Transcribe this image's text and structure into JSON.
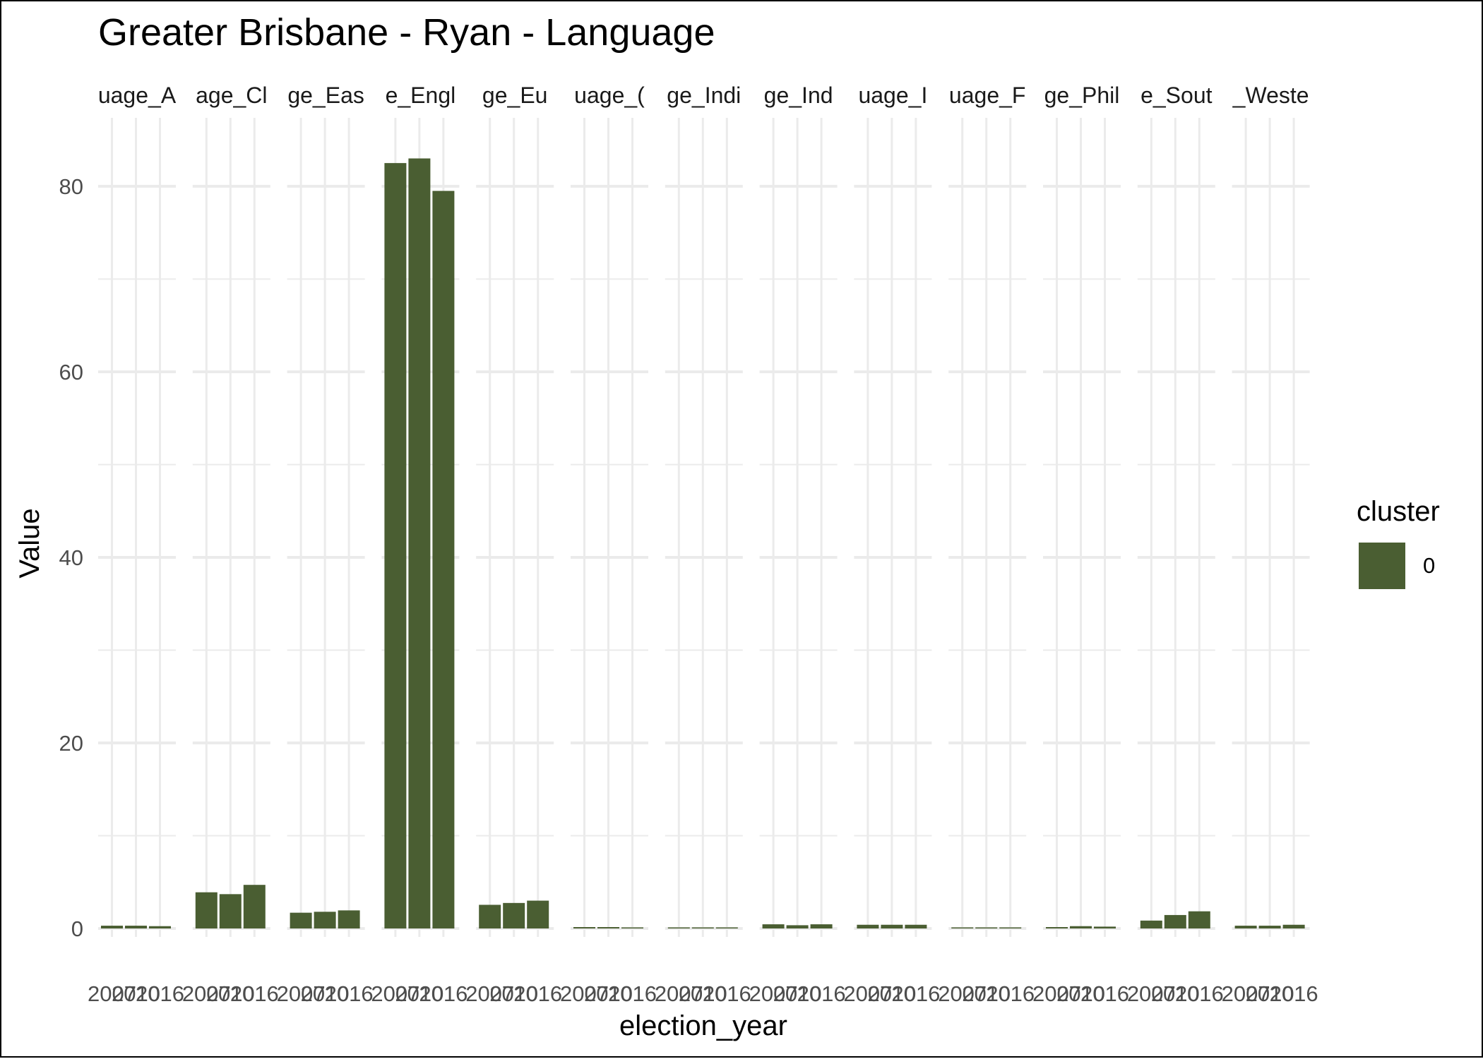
{
  "chart_data": {
    "type": "bar",
    "title": "Greater Brisbane - Ryan - Language",
    "xlabel": "election_year",
    "ylabel": "Value",
    "ylim": [
      0,
      87
    ],
    "yticks": [
      0,
      20,
      40,
      60,
      80
    ],
    "grid": true,
    "legend": {
      "title": "cluster",
      "position": "right",
      "entries": [
        {
          "label": "0",
          "color": "#4a5e32"
        }
      ]
    },
    "bar_color": "#4a5e32",
    "facet_label_color": "#1a1a1a",
    "years": [
      "2007",
      "2010",
      "2016"
    ],
    "facets": [
      {
        "label": "uage_A",
        "values": [
          0.3,
          0.3,
          0.25
        ]
      },
      {
        "label": "age_Cl",
        "values": [
          3.9,
          3.7,
          4.7
        ]
      },
      {
        "label": "ge_Eas",
        "values": [
          1.7,
          1.8,
          1.95
        ]
      },
      {
        "label": "e_Engl",
        "values": [
          82.5,
          83.0,
          79.5
        ]
      },
      {
        "label": "ge_Eu",
        "values": [
          2.55,
          2.75,
          3.0
        ]
      },
      {
        "label": "uage_(",
        "values": [
          0.15,
          0.15,
          0.1
        ]
      },
      {
        "label": "ge_Indi",
        "values": [
          0.05,
          0.05,
          0.05
        ]
      },
      {
        "label": "ge_Ind",
        "values": [
          0.45,
          0.35,
          0.45
        ]
      },
      {
        "label": "uage_I",
        "values": [
          0.4,
          0.4,
          0.4
        ]
      },
      {
        "label": "uage_F",
        "values": [
          0.05,
          0.05,
          0.05
        ]
      },
      {
        "label": "ge_Phil",
        "values": [
          0.15,
          0.25,
          0.2
        ]
      },
      {
        "label": "e_Sout",
        "values": [
          0.85,
          1.45,
          1.85
        ]
      },
      {
        "label": "_Weste",
        "values": [
          0.3,
          0.3,
          0.4
        ]
      }
    ]
  }
}
